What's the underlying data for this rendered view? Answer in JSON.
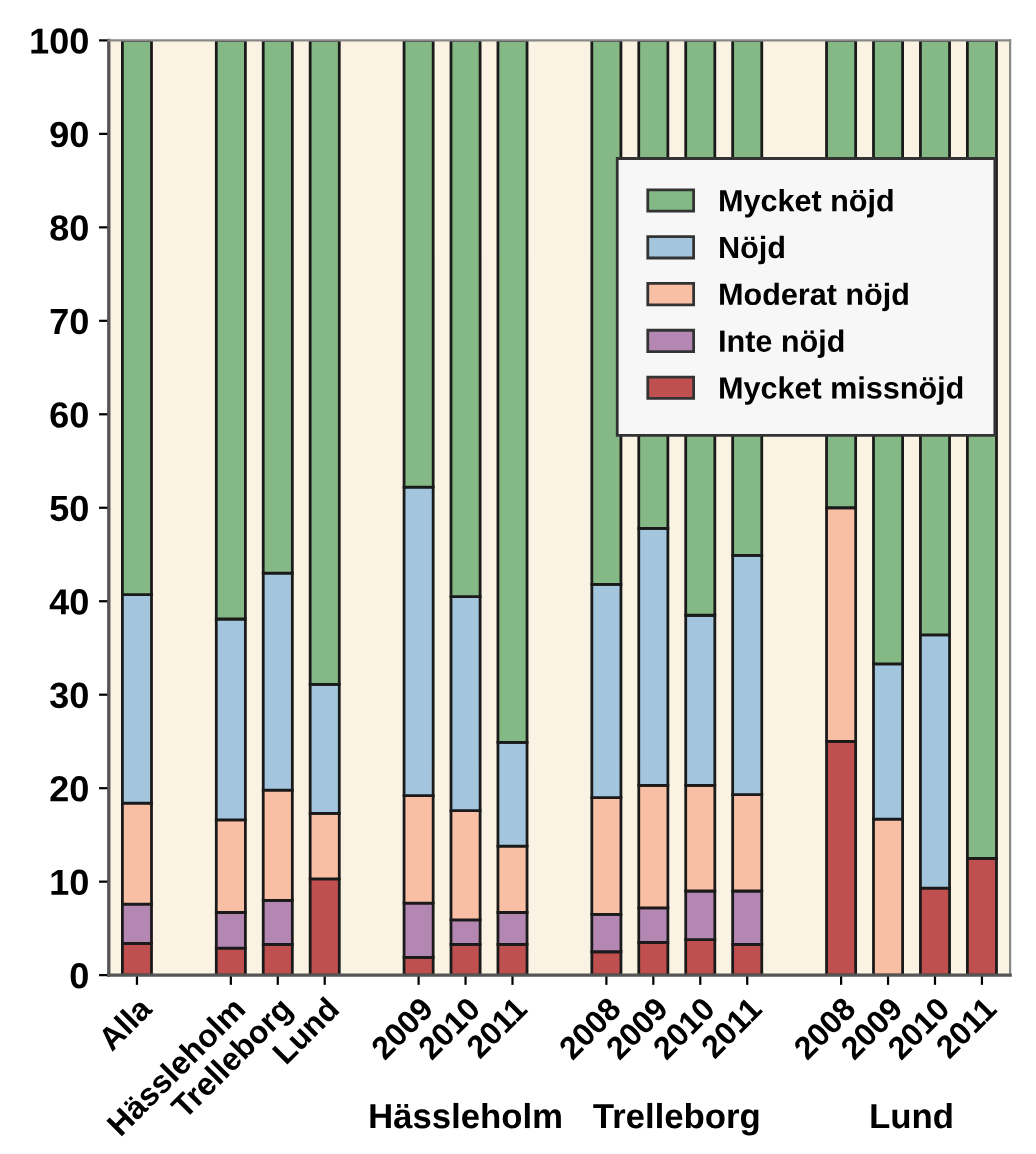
{
  "chart_data": {
    "type": "bar",
    "stacked": true,
    "categories": [
      "Alla",
      null,
      "Hässleholm",
      "Trelleborg",
      "Lund",
      null,
      "2009",
      "2010",
      "2011",
      null,
      "2008",
      "2009",
      "2010",
      "2011",
      null,
      "2008",
      "2009",
      "2010",
      "2011"
    ],
    "series": [
      {
        "name": "Mycket missnöjd",
        "color": "#c0504f",
        "values": [
          3.4,
          null,
          2.9,
          3.3,
          10.3,
          null,
          1.9,
          3.3,
          3.3,
          null,
          2.5,
          3.5,
          3.8,
          3.3,
          null,
          25,
          0,
          9.3,
          12.5
        ]
      },
      {
        "name": "Inte nöjd",
        "color": "#b487b3",
        "values": [
          4.2,
          null,
          3.8,
          4.7,
          0,
          null,
          5.8,
          2.6,
          3.4,
          null,
          4.0,
          3.7,
          5.2,
          5.7,
          null,
          0,
          0,
          0,
          0
        ]
      },
      {
        "name": "Moderat nöjd",
        "color": "#f8bfa4",
        "values": [
          10.8,
          null,
          9.9,
          11.8,
          7.0,
          null,
          11.5,
          11.7,
          7.1,
          null,
          12.5,
          13.1,
          11.3,
          10.3,
          null,
          25,
          16.7,
          0,
          0
        ]
      },
      {
        "name": "Nöjd",
        "color": "#a3c5dd",
        "values": [
          22.3,
          null,
          21.5,
          23.2,
          13.8,
          null,
          33.0,
          22.9,
          11.1,
          null,
          22.8,
          27.5,
          18.2,
          25.6,
          null,
          0,
          16.6,
          27.1,
          0
        ]
      },
      {
        "name": "Mycket nöjd",
        "color": "#84b985",
        "values": [
          59.3,
          null,
          61.9,
          57.0,
          68.9,
          null,
          47.8,
          59.5,
          75.1,
          null,
          58.2,
          52.2,
          61.5,
          55.1,
          null,
          50,
          66.7,
          63.6,
          87.5
        ]
      }
    ],
    "ylim": [
      0,
      100
    ],
    "yticks": [
      0,
      10,
      20,
      30,
      40,
      50,
      60,
      70,
      80,
      90,
      100
    ],
    "legend": "top right",
    "grid": false,
    "annotations": [
      "Hässleholm",
      "Trelleborg",
      "Lund"
    ]
  }
}
